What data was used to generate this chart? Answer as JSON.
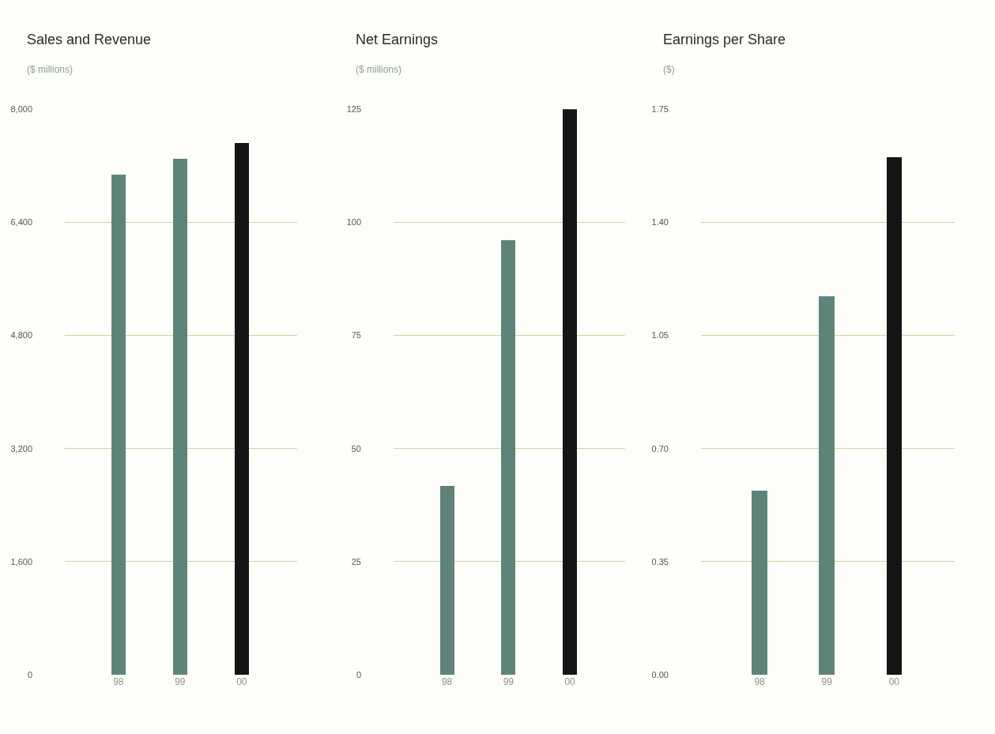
{
  "chart_data": [
    {
      "type": "bar",
      "title": "Sales and Revenue",
      "subtitle": "($ millions)",
      "categories": [
        "98",
        "99",
        "00"
      ],
      "values": [
        7073,
        7294,
        7514
      ],
      "colors": [
        "#5e8479",
        "#5e8479",
        "#151515"
      ],
      "ylim": [
        0,
        8000
      ],
      "yticks": [
        {
          "value": 0,
          "label": "0"
        },
        {
          "value": 1600,
          "label": "1,600"
        },
        {
          "value": 3200,
          "label": "3,200"
        },
        {
          "value": 4800,
          "label": "4,800"
        },
        {
          "value": 6400,
          "label": "6,400"
        },
        {
          "value": 8000,
          "label": "8,000"
        }
      ],
      "grid": "y"
    },
    {
      "type": "bar",
      "title": "Net Earnings",
      "subtitle": "($ millions)",
      "categories": [
        "98",
        "99",
        "00"
      ],
      "values": [
        41.6,
        96.0,
        125
      ],
      "colors": [
        "#5e8479",
        "#5e8479",
        "#151515"
      ],
      "ylim": [
        0,
        125
      ],
      "yticks": [
        0,
        25,
        50,
        75,
        100,
        125
      ],
      "grid": "y"
    },
    {
      "type": "bar",
      "title": "Earnings per Share",
      "subtitle": "($)",
      "categories": [
        "98",
        "99",
        "00"
      ],
      "values": [
        0.57,
        1.17,
        1.6
      ],
      "colors": [
        "#5e8479",
        "#5e8479",
        "#151515"
      ],
      "ylim": [
        0,
        1.75
      ],
      "yticks": [
        {
          "value": 0,
          "label": "0.00"
        },
        {
          "value": 0.35,
          "label": "0.35"
        },
        {
          "value": 0.7,
          "label": "0.70"
        },
        {
          "value": 1.05,
          "label": "1.05"
        },
        {
          "value": 1.4,
          "label": "1.40"
        },
        {
          "value": 1.75,
          "label": "1.75"
        }
      ],
      "grid": "y"
    }
  ]
}
